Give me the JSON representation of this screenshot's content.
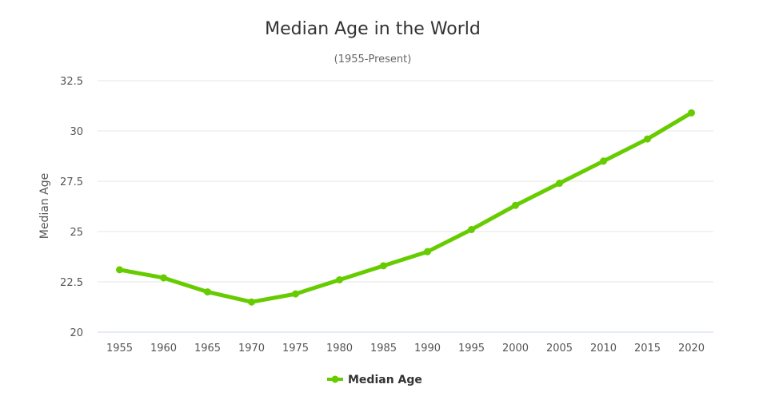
{
  "chart_data": {
    "type": "line",
    "title": "Median Age in the World",
    "subtitle": "(1955-Present)",
    "xlabel": "",
    "ylabel": "Median Age",
    "categories": [
      "1955",
      "1960",
      "1965",
      "1970",
      "1975",
      "1980",
      "1985",
      "1990",
      "1995",
      "2000",
      "2005",
      "2010",
      "2015",
      "2020"
    ],
    "series": [
      {
        "name": "Median Age",
        "color": "#66cc00",
        "values": [
          23.1,
          22.7,
          22.0,
          21.5,
          21.9,
          22.6,
          23.3,
          24.0,
          25.1,
          26.3,
          27.4,
          28.5,
          29.6,
          30.9
        ]
      }
    ],
    "ylim": [
      20,
      32.5
    ],
    "yticks": [
      "20",
      "22.5",
      "25",
      "27.5",
      "30",
      "32.5"
    ],
    "ytick_values": [
      20,
      22.5,
      25,
      27.5,
      30,
      32.5
    ],
    "grid": true,
    "legend": "bottom-center"
  }
}
